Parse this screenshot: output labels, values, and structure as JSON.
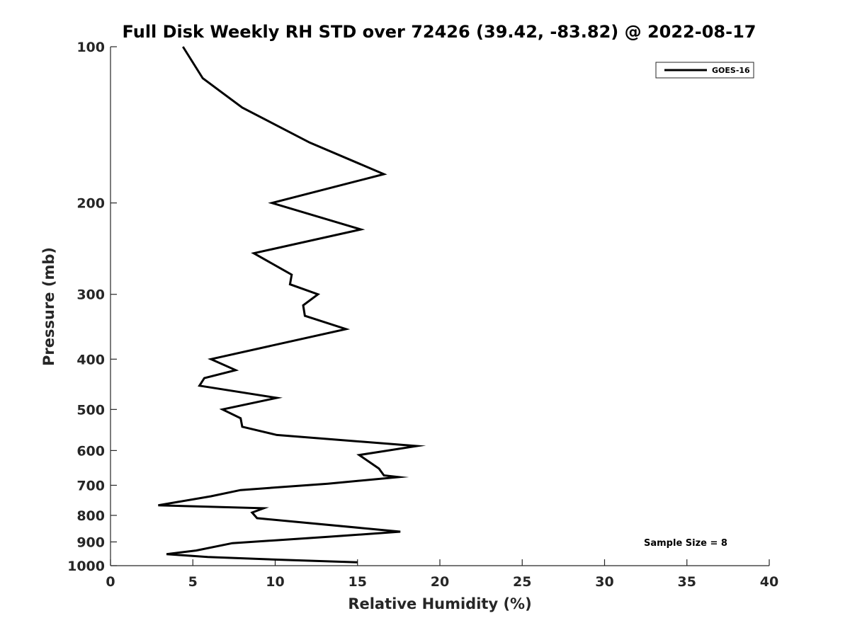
{
  "chart_data": {
    "type": "line",
    "title": "Full Disk Weekly RH STD over 72426 (39.42, -83.82) @ 2022-08-17",
    "xlabel": "Relative Humidity (%)",
    "ylabel": "Pressure (mb)",
    "xlim": [
      0,
      40
    ],
    "ylim": [
      100,
      1000
    ],
    "y_scale": "log",
    "y_reversed": true,
    "xticks": [
      0,
      5,
      10,
      15,
      20,
      25,
      30,
      35,
      40
    ],
    "yticks": [
      100,
      200,
      300,
      400,
      500,
      600,
      700,
      800,
      900,
      1000
    ],
    "grid": false,
    "legend_position": "top-right",
    "annotation": "Sample Size = 8",
    "series": [
      {
        "name": "GOES-16",
        "color": "#000000",
        "x": [
          4.4,
          5.6,
          8.0,
          12.1,
          16.6,
          9.8,
          15.2,
          8.7,
          11.0,
          10.9,
          12.6,
          11.7,
          11.8,
          14.3,
          6.1,
          7.6,
          5.7,
          5.4,
          10.1,
          6.8,
          7.9,
          8.0,
          10.1,
          18.6,
          15.1,
          16.3,
          16.6,
          17.5,
          13.2,
          7.9,
          6.1,
          2.9,
          9.3,
          8.6,
          8.9,
          17.6,
          13.2,
          7.4,
          5.2,
          3.4,
          5.9,
          10.6,
          15.0
        ],
        "y": [
          100,
          115,
          131,
          153,
          176,
          200,
          225,
          250,
          275,
          287,
          300,
          315,
          330,
          350,
          400,
          420,
          435,
          450,
          475,
          500,
          520,
          540,
          560,
          588,
          612,
          650,
          670,
          675,
          695,
          715,
          735,
          765,
          775,
          790,
          810,
          860,
          880,
          905,
          935,
          950,
          962,
          975,
          985
        ]
      }
    ]
  }
}
